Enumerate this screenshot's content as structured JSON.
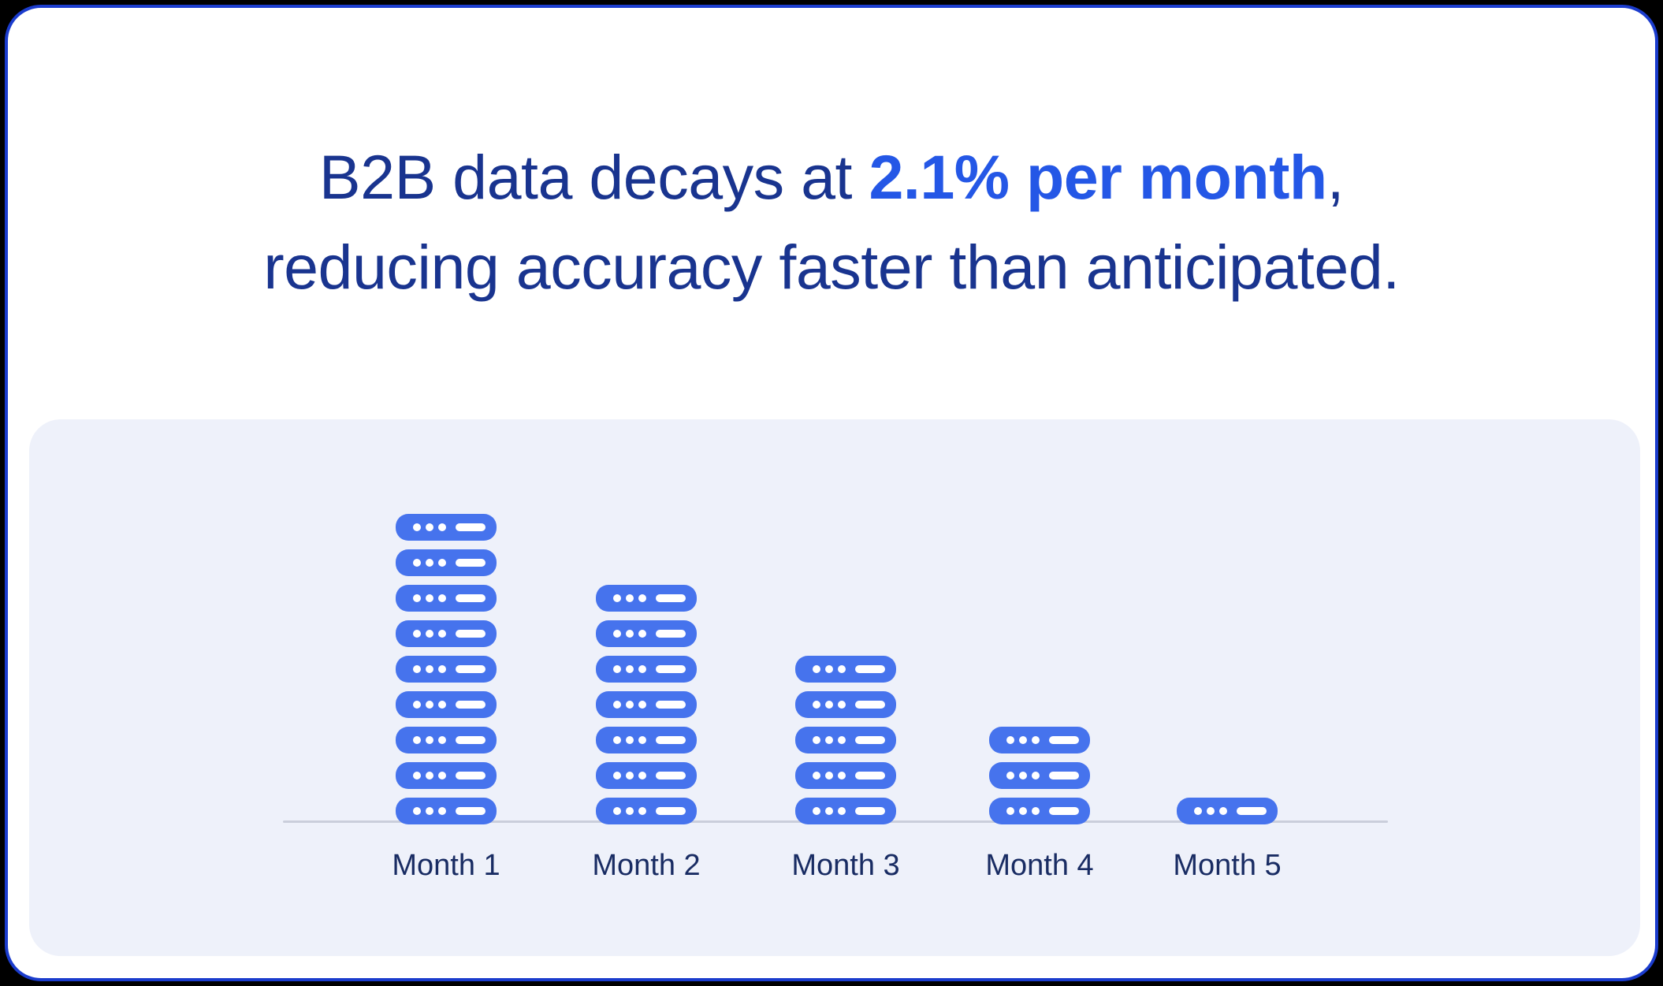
{
  "headline": {
    "line1_prefix": "B2B data decays at ",
    "line1_highlight": "2.1% per month",
    "line1_suffix": ",",
    "line2": "reducing accuracy faster than anticipated."
  },
  "chart_data": {
    "type": "bar",
    "subtype": "pictogram-unit-stack",
    "unit_icon": "server-rack-icon",
    "categories": [
      "Month 1",
      "Month 2",
      "Month 3",
      "Month 4",
      "Month 5"
    ],
    "values": [
      9,
      7,
      5,
      3,
      1
    ],
    "title": "",
    "xlabel": "",
    "ylabel": "",
    "ylim": [
      0,
      9
    ],
    "grid": false,
    "legend": false
  },
  "colors": {
    "page_background": "#000000",
    "card_background": "#ffffff",
    "card_border": "#1b3ccd",
    "panel_background": "#eef1fa",
    "headline_text": "#19348f",
    "headline_highlight": "#2457e6",
    "server_icon": "#4673ed",
    "server_icon_detail": "#ffffff",
    "axis_line": "#cacedb",
    "axis_label": "#192c63"
  }
}
